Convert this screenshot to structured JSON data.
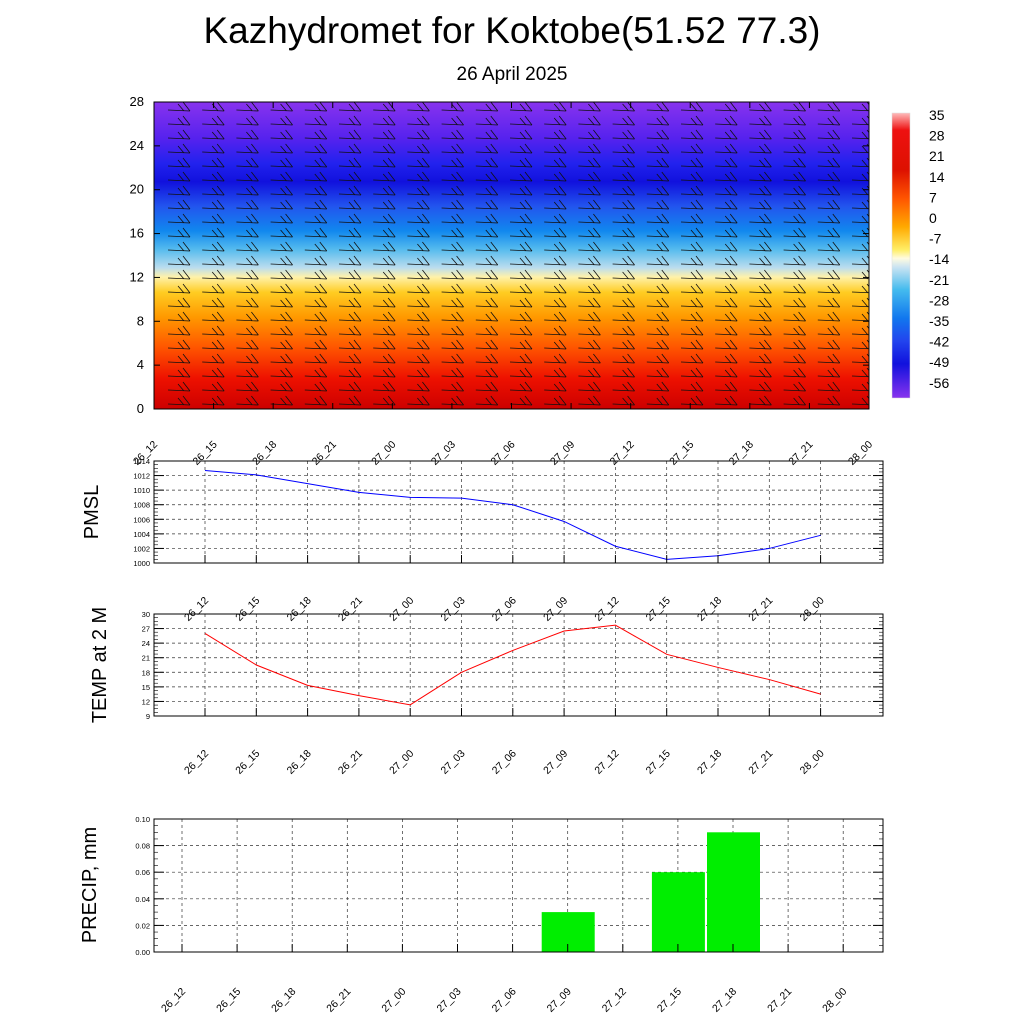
{
  "header": {
    "title": "Kazhydromet for Koktobe(51.52 77.3)",
    "subtitle": "26 April 2025"
  },
  "x_labels": [
    "26_12",
    "26_15",
    "26_18",
    "26_21",
    "27_00",
    "27_03",
    "27_06",
    "27_09",
    "27_12",
    "27_15",
    "27_18",
    "27_21",
    "28_00"
  ],
  "chart_data": [
    {
      "type": "heatmap",
      "y_ticks": [
        0,
        4,
        8,
        12,
        16,
        20,
        24,
        28
      ],
      "ylim": [
        0,
        28
      ],
      "colorbar": {
        "labels": [
          "35",
          "28",
          "21",
          "14",
          "7",
          "0",
          "-7",
          "-14",
          "-21",
          "-28",
          "-35",
          "-42",
          "-49",
          "-56"
        ]
      }
    },
    {
      "type": "line",
      "ylabel": "PMSL",
      "x": [
        "26_12",
        "26_15",
        "26_18",
        "26_21",
        "27_00",
        "27_03",
        "27_06",
        "27_09",
        "27_12",
        "27_15",
        "27_18",
        "27_21",
        "28_00"
      ],
      "values": [
        1012.7,
        1012.1,
        1010.9,
        1009.7,
        1009.0,
        1008.9,
        1008.0,
        1005.7,
        1002.3,
        1000.5,
        1001.0,
        1002.0,
        1003.8
      ],
      "ylim": [
        1000,
        1014
      ],
      "y_ticks": [
        "1000",
        "1002",
        "1004",
        "1006",
        "1008",
        "1010",
        "1012",
        "1014"
      ],
      "line_color": "#0000ff"
    },
    {
      "type": "line",
      "ylabel": "TEMP at 2 M",
      "x": [
        "26_12",
        "26_15",
        "26_18",
        "26_21",
        "27_00",
        "27_03",
        "27_06",
        "27_09",
        "27_12",
        "27_15",
        "27_18",
        "27_21",
        "28_00"
      ],
      "values": [
        26.0,
        19.5,
        15.3,
        13.2,
        11.3,
        18.0,
        22.5,
        26.5,
        27.7,
        21.7,
        19.0,
        16.5,
        13.5
      ],
      "ylim": [
        9,
        30
      ],
      "y_ticks": [
        "9",
        "12",
        "15",
        "18",
        "21",
        "24",
        "27",
        "30"
      ],
      "line_color": "#ff0000"
    },
    {
      "type": "bar",
      "ylabel": "PRECIP, mm",
      "categories": [
        "26_12",
        "26_15",
        "26_18",
        "26_21",
        "27_00",
        "27_03",
        "27_06",
        "27_09",
        "27_12",
        "27_15",
        "27_18",
        "27_21",
        "28_00"
      ],
      "values": [
        0,
        0,
        0,
        0,
        0,
        0,
        0,
        0.03,
        0,
        0.06,
        0.09,
        0,
        0
      ],
      "ylim": [
        0,
        0.1
      ],
      "y_ticks": [
        "0.00",
        "0.02",
        "0.04",
        "0.06",
        "0.08",
        "0.10"
      ],
      "bar_color": "#00ee00"
    }
  ]
}
